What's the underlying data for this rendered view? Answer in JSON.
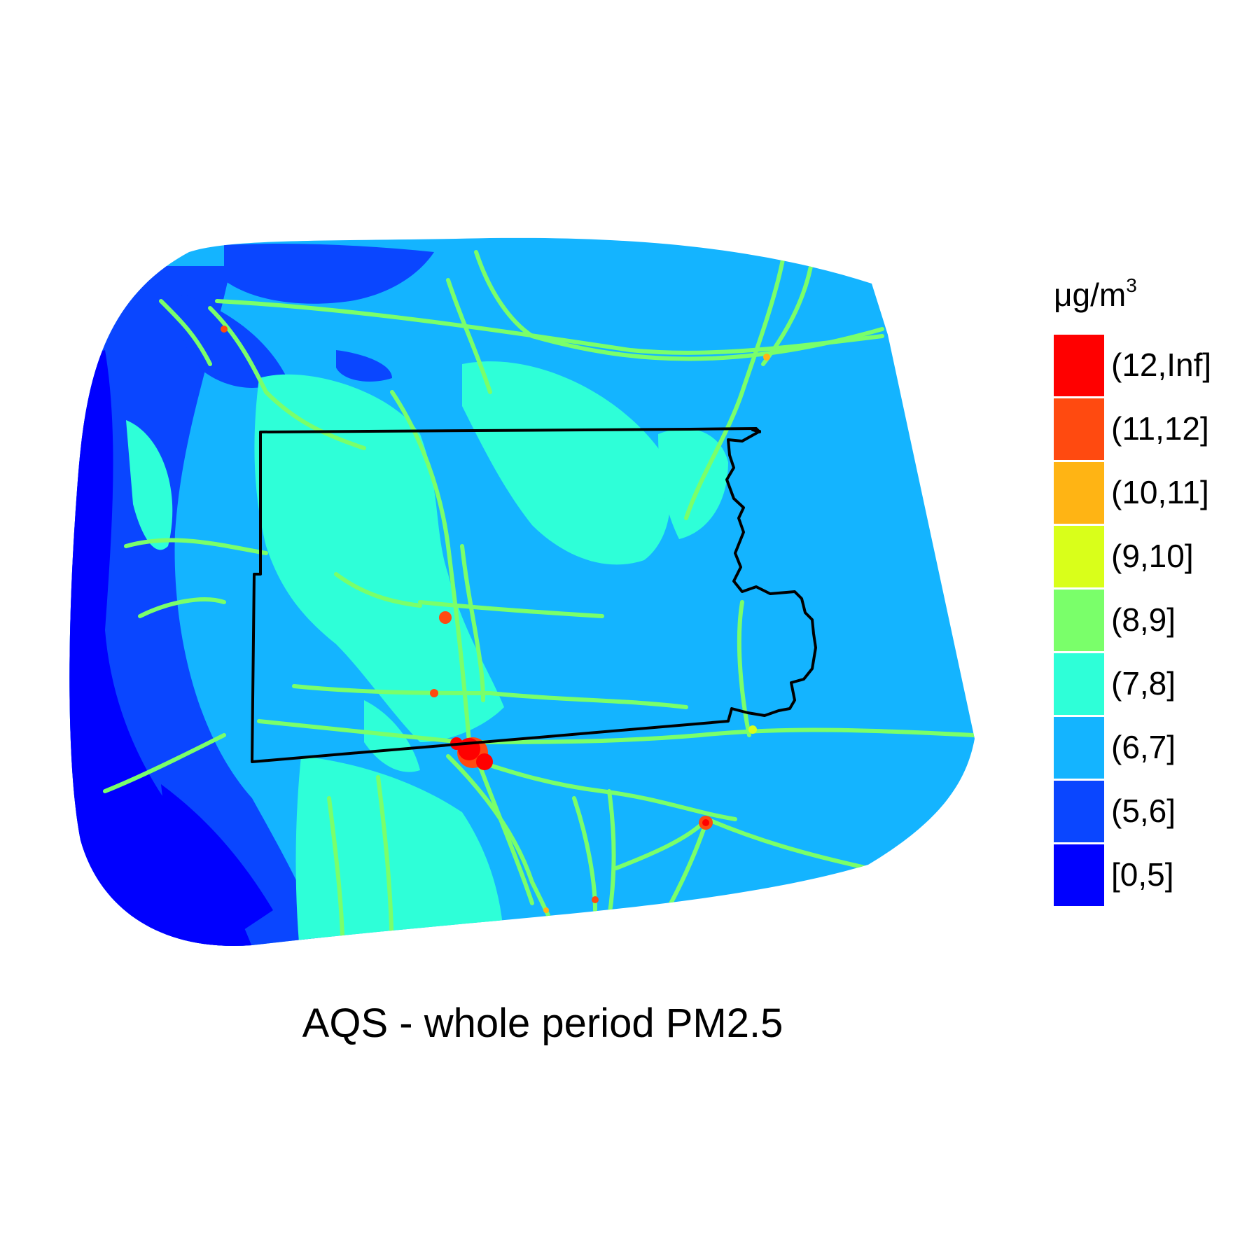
{
  "title": "AQS - whole period PM2.5",
  "legend": {
    "unit_base": "μg/m",
    "unit_exp": "3",
    "items": [
      {
        "label": "(12,Inf]",
        "color": "#ff0000"
      },
      {
        "label": "(11,12]",
        "color": "#ff4a10"
      },
      {
        "label": "(10,11]",
        "color": "#ffb414"
      },
      {
        "label": "(9,10]",
        "color": "#d9ff1a"
      },
      {
        "label": "(8,9]",
        "color": "#7aff6a"
      },
      {
        "label": "(7,8]",
        "color": "#2effd8"
      },
      {
        "label": "(6,7]",
        "color": "#14b4ff"
      },
      {
        "label": "(5,6]",
        "color": "#0a46ff"
      },
      {
        "label": "[0,5]",
        "color": "#0000ff"
      }
    ]
  }
}
